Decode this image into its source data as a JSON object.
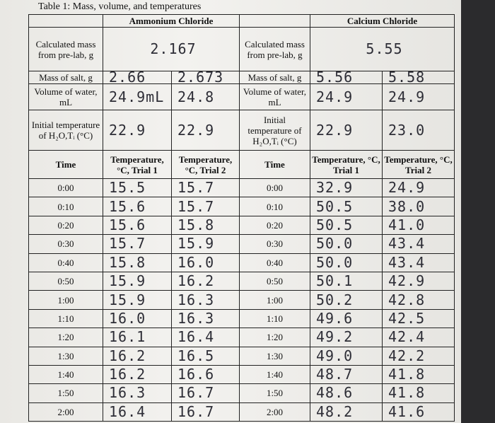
{
  "title": "Table 1: Mass, volume, and temperatures",
  "sections": [
    {
      "name": "Ammonium Chloride",
      "labels": {
        "calculated_mass": "Calculated mass from pre-lab, g",
        "mass_of_salt": "Mass of salt, g",
        "volume": "Volume of water, mL",
        "initial_temp": "Initial temperature of H₂O,Tᵢ (°C)",
        "time": "Time",
        "trial1": "Temperature, °C, Trial 1",
        "trial2": "Temperature, °C, Trial 2"
      },
      "calculated_mass": "2.167",
      "mass_of_salt": [
        "2.66",
        "2.673"
      ],
      "volume": [
        "24.9mL",
        "24.8"
      ],
      "initial_temp": [
        "22.9",
        "22.9"
      ],
      "rows": [
        [
          "0:00",
          "15.5",
          "15.7"
        ],
        [
          "0:10",
          "15.6",
          "15.7"
        ],
        [
          "0:20",
          "15.6",
          "15.8"
        ],
        [
          "0:30",
          "15.7",
          "15.9"
        ],
        [
          "0:40",
          "15.8",
          "16.0"
        ],
        [
          "0:50",
          "15.9",
          "16.2"
        ],
        [
          "1:00",
          "15.9",
          "16.3"
        ],
        [
          "1:10",
          "16.0",
          "16.3"
        ],
        [
          "1:20",
          "16.1",
          "16.4"
        ],
        [
          "1:30",
          "16.2",
          "16.5"
        ],
        [
          "1:40",
          "16.2",
          "16.6"
        ],
        [
          "1:50",
          "16.3",
          "16.7"
        ],
        [
          "2:00",
          "16.4",
          "16.7"
        ]
      ]
    },
    {
      "name": "Calcium Chloride",
      "labels": {
        "calculated_mass": "Calculated mass from pre-lab, g",
        "mass_of_salt": "Mass of salt, g",
        "volume": "Volume of water, mL",
        "initial_temp": "Initial temperature of H₂O,Tᵢ (°C)",
        "time": "Time",
        "trial1": "Temperature, °C, Trial 1",
        "trial2": "Temperature, °C, Trial 2"
      },
      "calculated_mass": "5.55",
      "mass_of_salt": [
        "5.56",
        "5.58"
      ],
      "volume": [
        "24.9",
        "24.9"
      ],
      "initial_temp": [
        "22.9",
        "23.0"
      ],
      "rows": [
        [
          "0:00",
          "32.9",
          "24.9"
        ],
        [
          "0:10",
          "50.5",
          "38.0"
        ],
        [
          "0:20",
          "50.5",
          "41.0"
        ],
        [
          "0:30",
          "50.0",
          "43.4"
        ],
        [
          "0:40",
          "50.0",
          "43.4"
        ],
        [
          "0:50",
          "50.1",
          "42.9"
        ],
        [
          "1:00",
          "50.2",
          "42.8"
        ],
        [
          "1:10",
          "49.6",
          "42.5"
        ],
        [
          "1:20",
          "49.2",
          "42.4"
        ],
        [
          "1:30",
          "49.0",
          "42.2"
        ],
        [
          "1:40",
          "48.7",
          "41.8"
        ],
        [
          "1:50",
          "48.6",
          "41.8"
        ],
        [
          "2:00",
          "48.2",
          "41.6"
        ]
      ]
    }
  ]
}
